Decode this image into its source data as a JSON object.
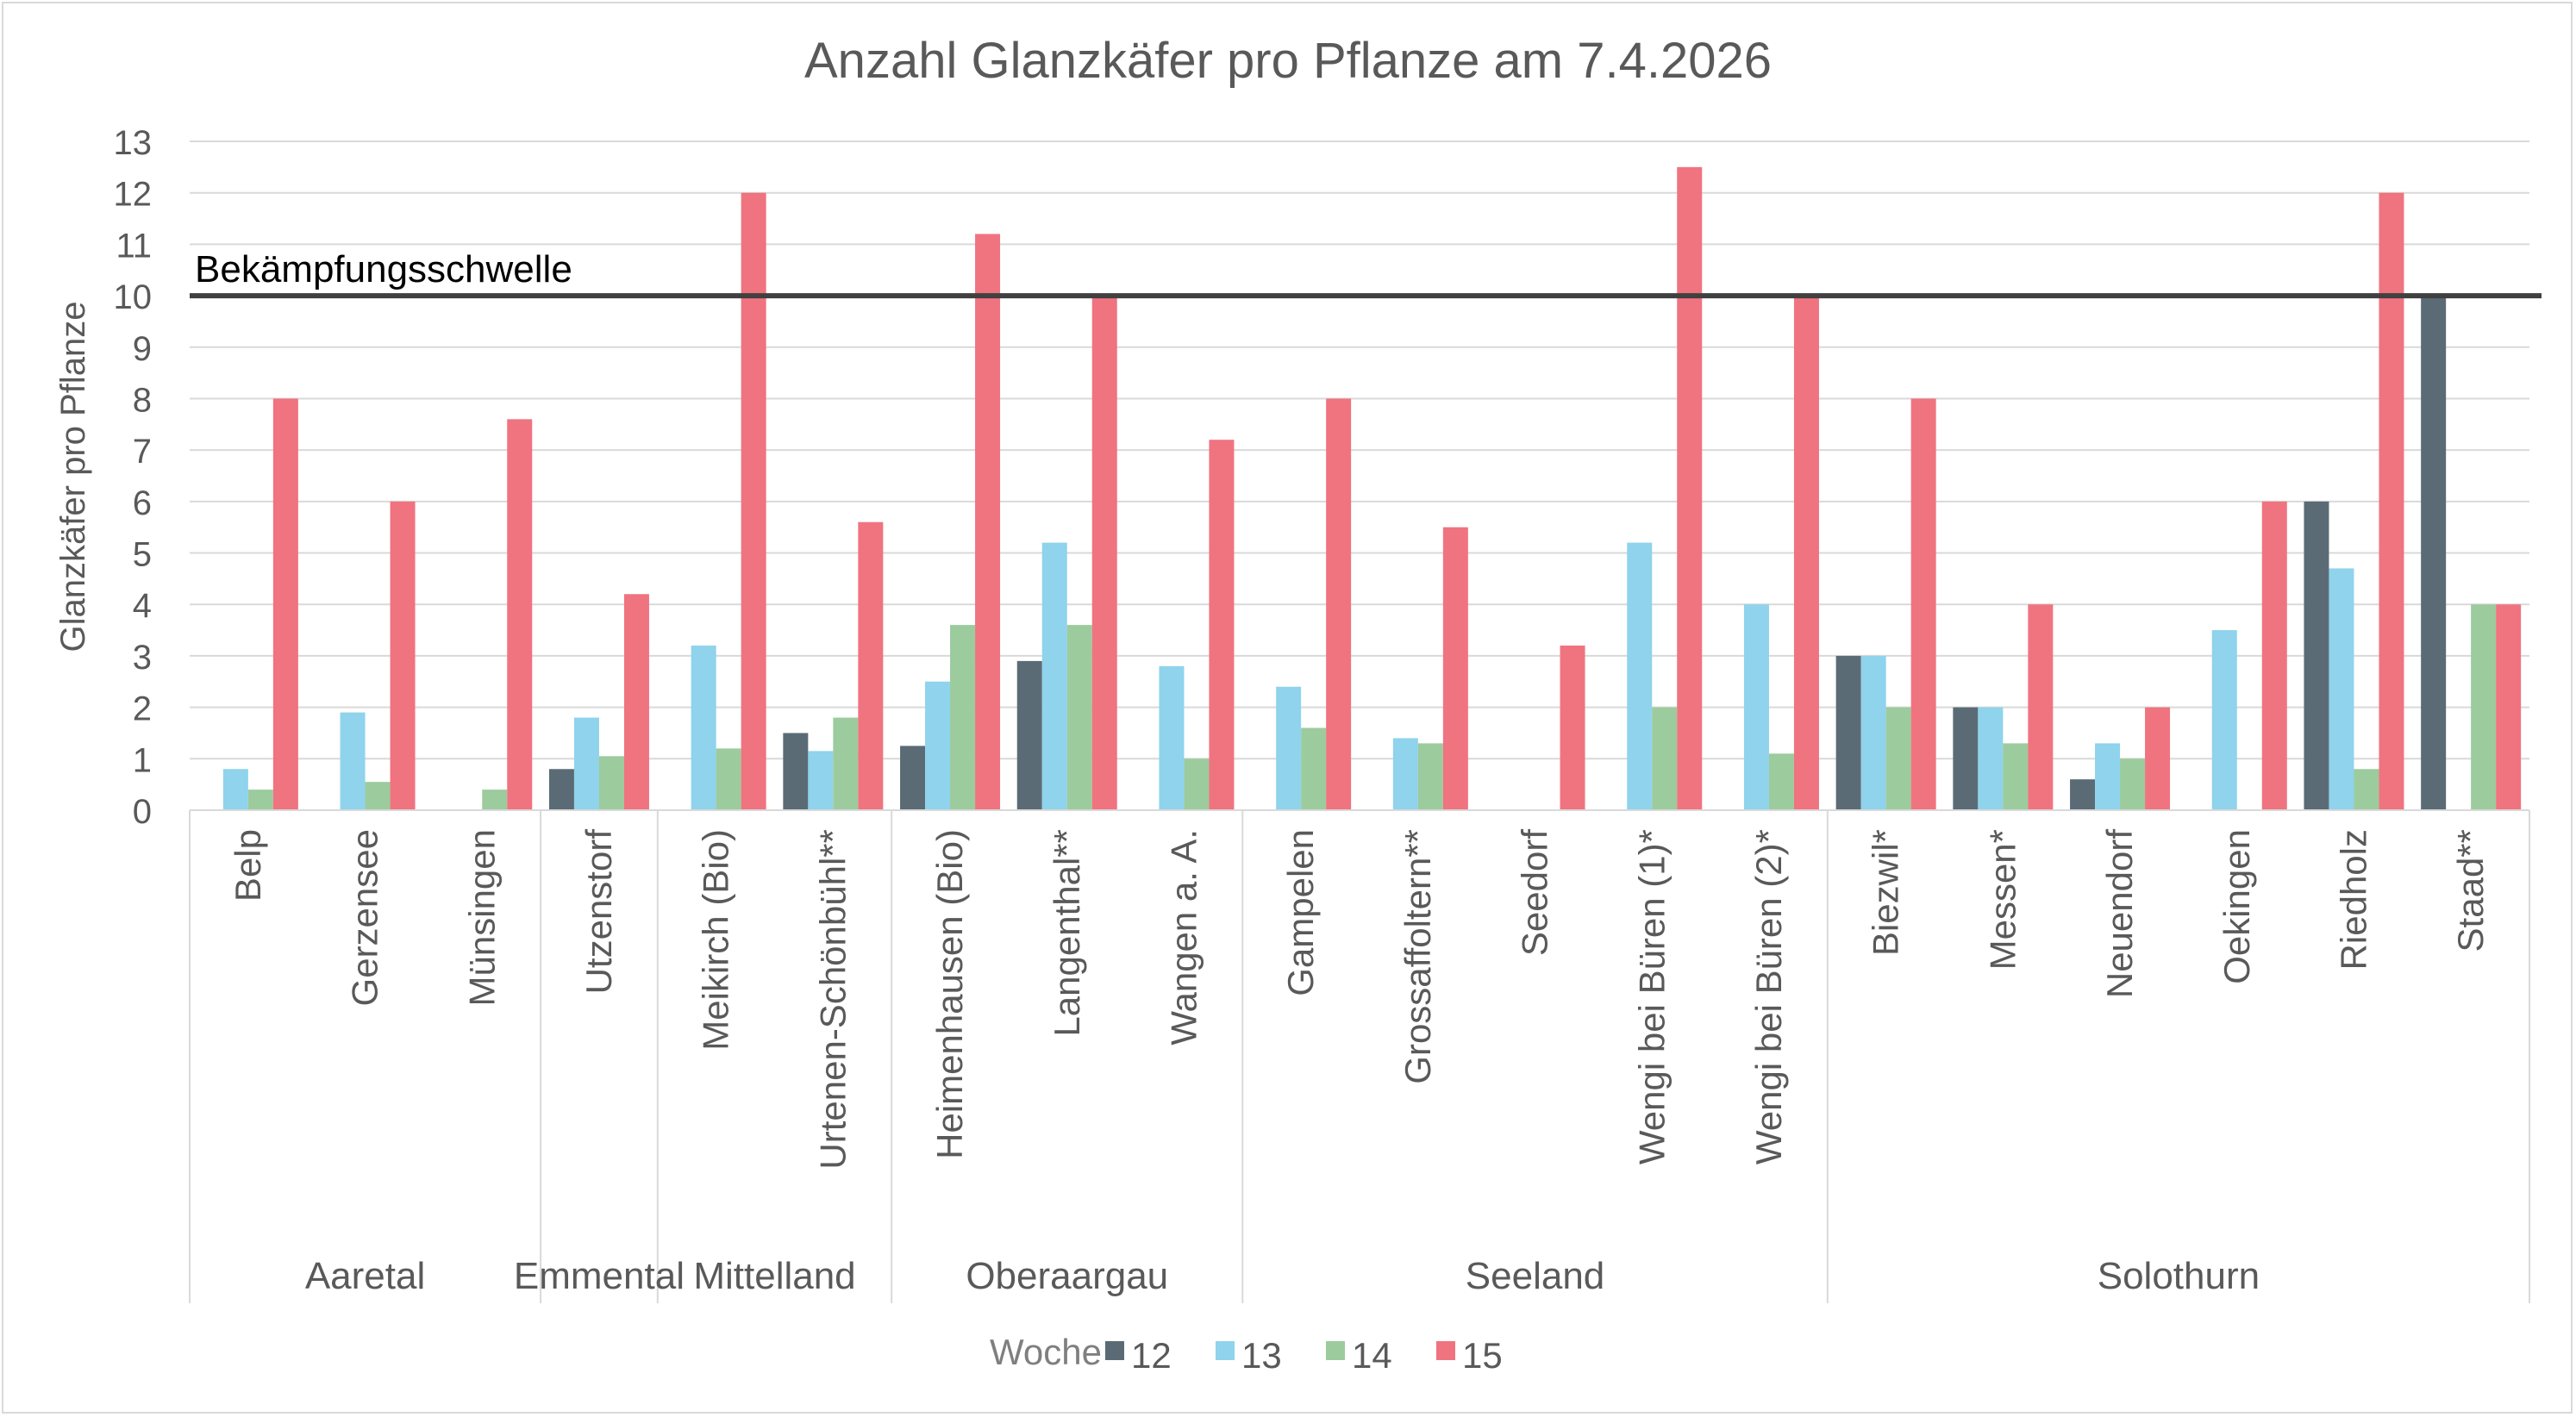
{
  "chart_data": {
    "type": "bar",
    "title": "Anzahl Glanzkäfer pro Pflanze am 7.4.2026",
    "xlabel": "",
    "ylabel": "Glanzkäfer pro Pflanze",
    "ylim": [
      0,
      13
    ],
    "yticks": [
      "0",
      "1",
      "2",
      "3",
      "4",
      "5",
      "6",
      "7",
      "8",
      "9",
      "10",
      "11",
      "12",
      "13"
    ],
    "grid": true,
    "legend": {
      "title": "Woche",
      "position": "bottom"
    },
    "threshold": {
      "value": 10,
      "label": "Bekämpfungsschwelle",
      "color": "#404040"
    },
    "colors": [
      "#5b6b75",
      "#8fd3ec",
      "#9ccb9e",
      "#f07380"
    ],
    "groups": [
      {
        "name": "Aaretal",
        "count": 3
      },
      {
        "name": "Emmental",
        "count": 1
      },
      {
        "name": "Mittelland",
        "count": 2
      },
      {
        "name": "Oberaargau",
        "count": 3
      },
      {
        "name": "Seeland",
        "count": 5
      },
      {
        "name": "Solothurn",
        "count": 6
      }
    ],
    "categories": [
      "Belp",
      "Gerzensee",
      "Münsingen",
      "Utzenstorf",
      "Meikirch (Bio)",
      "Urtenen-Schönbühl**",
      "Heimenhausen (Bio)",
      "Langenthal**",
      "Wangen a. A.",
      "Gampelen",
      "Grossaffoltern**",
      "Seedorf",
      "Wengi bei Büren (1)*",
      "Wengi bei Büren (2)*",
      "Biezwil*",
      "Messen*",
      "Neuendorf",
      "Oekingen",
      "Riedholz",
      "Staad**"
    ],
    "series": [
      {
        "name": "12",
        "values": [
          null,
          null,
          null,
          0.8,
          null,
          1.5,
          1.25,
          2.9,
          null,
          null,
          null,
          null,
          null,
          null,
          3,
          2,
          0.6,
          null,
          6,
          10
        ]
      },
      {
        "name": "13",
        "values": [
          0.8,
          1.9,
          null,
          1.8,
          3.2,
          1.15,
          2.5,
          5.2,
          2.8,
          2.4,
          1.4,
          null,
          5.2,
          4,
          3,
          2,
          1.3,
          3.5,
          4.7,
          null
        ]
      },
      {
        "name": "14",
        "values": [
          0.4,
          0.55,
          0.4,
          1.05,
          1.2,
          1.8,
          3.6,
          3.6,
          1,
          1.6,
          1.3,
          null,
          2,
          1.1,
          2,
          1.3,
          1,
          null,
          0.8,
          4
        ]
      },
      {
        "name": "15",
        "values": [
          8,
          6,
          7.6,
          4.2,
          12,
          5.6,
          11.2,
          10,
          7.2,
          8,
          5.5,
          3.2,
          12.5,
          10,
          8,
          4,
          2,
          6,
          12,
          4
        ]
      }
    ]
  }
}
